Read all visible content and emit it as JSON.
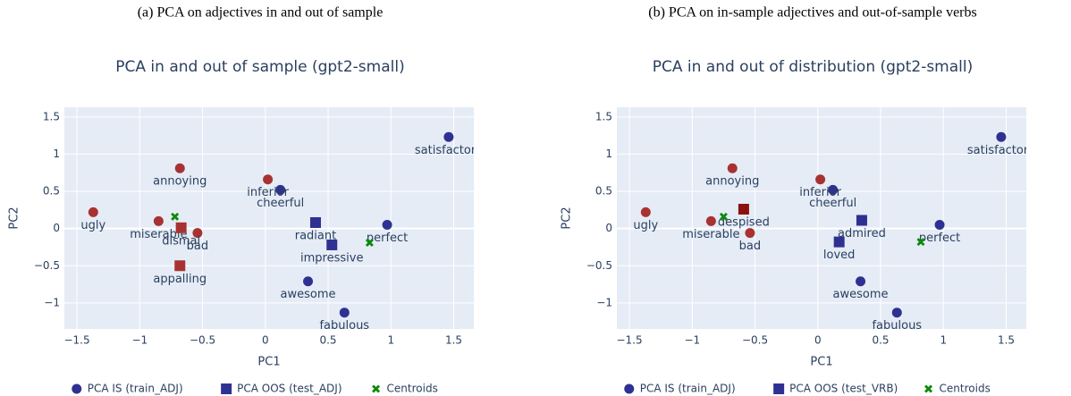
{
  "chart_data": [
    {
      "type": "scatter",
      "caption": "(a) PCA on adjectives in and out of sample",
      "title": "PCA in and out of sample (gpt2-small)",
      "x_label": "PC1",
      "y_label": "PC2",
      "xlim": [
        -1.6,
        1.66
      ],
      "ylim": [
        -1.35,
        1.63
      ],
      "xticks": [
        {
          "value": -1.5,
          "label": "−1.5"
        },
        {
          "value": -1,
          "label": "−1"
        },
        {
          "value": -0.5,
          "label": "−0.5"
        },
        0,
        0.5,
        1,
        1.5
      ],
      "yticks": [
        {
          "value": -1,
          "label": "−1"
        },
        {
          "value": -0.5,
          "label": "−0.5"
        },
        0,
        0.5,
        1,
        1.5
      ],
      "grid": true,
      "background": "#e5ecf6",
      "series": [
        {
          "name": "PCA IS (train_ADJ)",
          "symbol": "circle",
          "color": "#2e3192",
          "labels": [
            "satisfactory",
            "cheerful",
            "perfect",
            "awesome",
            "fabulous",
            "annoying",
            "inferior",
            "ugly",
            "miserable",
            "bad"
          ],
          "x": [
            1.46,
            0.12,
            0.97,
            0.34,
            0.63,
            -0.68,
            0.02,
            -1.37,
            -0.85,
            -0.54
          ],
          "values": [
            1.23,
            0.52,
            0.05,
            -0.71,
            -1.13,
            0.81,
            0.66,
            0.22,
            0.1,
            -0.06
          ],
          "colors": [
            "#2e3192",
            "#2e3192",
            "#2e3192",
            "#2e3192",
            "#2e3192",
            "#a83232",
            "#a83232",
            "#a83232",
            "#a83232",
            "#a83232"
          ]
        },
        {
          "name": "PCA OOS (test_ADJ)",
          "symbol": "square",
          "color": "#2e3192",
          "labels": [
            "dismal",
            "appalling",
            "radiant",
            "impressive"
          ],
          "x": [
            -0.67,
            -0.68,
            0.4,
            0.53
          ],
          "values": [
            0.01,
            -0.5,
            0.08,
            -0.22
          ],
          "colors": [
            "#a83232",
            "#a83232",
            "#2e3192",
            "#2e3192"
          ]
        },
        {
          "name": "Centroids",
          "symbol": "x",
          "color": "#0a8a0a",
          "x": [
            -0.72,
            0.83
          ],
          "values": [
            0.16,
            -0.19
          ]
        }
      ]
    },
    {
      "type": "scatter",
      "caption": "(b) PCA on in-sample adjectives and out-of-sample verbs",
      "title": "PCA in and out of distribution (gpt2-small)",
      "x_label": "PC1",
      "y_label": "PC2",
      "xlim": [
        -1.6,
        1.66
      ],
      "ylim": [
        -1.35,
        1.63
      ],
      "xticks": [
        {
          "value": -1.5,
          "label": "−1.5"
        },
        {
          "value": -1,
          "label": "−1"
        },
        {
          "value": -0.5,
          "label": "−0.5"
        },
        0,
        0.5,
        1,
        1.5
      ],
      "yticks": [
        {
          "value": -1,
          "label": "−1"
        },
        {
          "value": -0.5,
          "label": "−0.5"
        },
        0,
        0.5,
        1,
        1.5
      ],
      "grid": true,
      "background": "#e5ecf6",
      "series": [
        {
          "name": "PCA IS (train_ADJ)",
          "symbol": "circle",
          "color": "#2e3192",
          "labels": [
            "satisfactory",
            "cheerful",
            "perfect",
            "awesome",
            "fabulous",
            "annoying",
            "inferior",
            "ugly",
            "miserable",
            "bad"
          ],
          "x": [
            1.46,
            0.12,
            0.97,
            0.34,
            0.63,
            -0.68,
            0.02,
            -1.37,
            -0.85,
            -0.54
          ],
          "values": [
            1.23,
            0.52,
            0.05,
            -0.71,
            -1.13,
            0.81,
            0.66,
            0.22,
            0.1,
            -0.06
          ],
          "colors": [
            "#2e3192",
            "#2e3192",
            "#2e3192",
            "#2e3192",
            "#2e3192",
            "#a83232",
            "#a83232",
            "#a83232",
            "#a83232",
            "#a83232"
          ]
        },
        {
          "name": "PCA OOS (test_VRB)",
          "symbol": "square",
          "color": "#2e3192",
          "labels": [
            "despised",
            "admired",
            "loved"
          ],
          "x": [
            -0.59,
            0.35,
            0.17
          ],
          "values": [
            0.26,
            0.11,
            -0.18
          ],
          "colors": [
            "#8b1010",
            "#2e3192",
            "#2e3192"
          ]
        },
        {
          "name": "Centroids",
          "symbol": "x",
          "color": "#0a8a0a",
          "x": [
            -0.75,
            0.82
          ],
          "values": [
            0.16,
            -0.18
          ]
        }
      ]
    }
  ]
}
